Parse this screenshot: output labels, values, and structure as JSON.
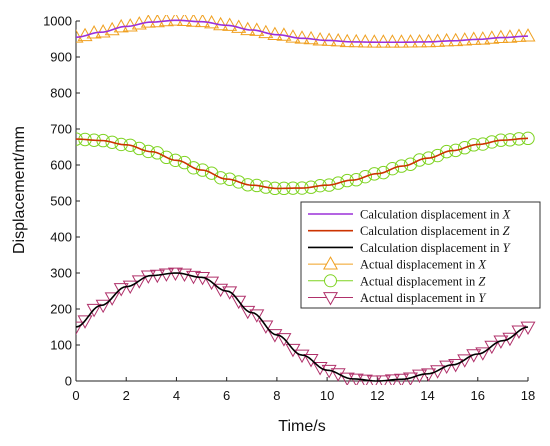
{
  "chart_data": {
    "type": "line",
    "xlabel": "Time/s",
    "ylabel": "Displacement/mm",
    "xlim": [
      0,
      18
    ],
    "ylim": [
      0,
      1000
    ],
    "xticks": [
      0,
      2,
      4,
      6,
      8,
      10,
      12,
      14,
      16,
      18
    ],
    "yticks": [
      0,
      100,
      200,
      300,
      400,
      500,
      600,
      700,
      800,
      900,
      1000
    ],
    "grid": false,
    "legend_position": "right",
    "x": [
      0,
      1,
      2,
      3,
      4,
      5,
      6,
      7,
      8,
      9,
      10,
      11,
      12,
      13,
      14,
      15,
      16,
      17,
      18
    ],
    "series": [
      {
        "name_prefix": "Calculation displacement in ",
        "axis_letter": "X",
        "kind": "line",
        "color": "#9b30d9",
        "values": [
          955,
          969,
          985,
          997,
          1002,
          998,
          988,
          975,
          962,
          952,
          946,
          942,
          941,
          941,
          942,
          945,
          949,
          954,
          958
        ]
      },
      {
        "name_prefix": "Calculation displacement in ",
        "axis_letter": "Z",
        "kind": "line",
        "color": "#cc3300",
        "values": [
          672,
          668,
          656,
          637,
          613,
          586,
          561,
          544,
          535,
          536,
          544,
          558,
          576,
          597,
          619,
          640,
          657,
          669,
          674
        ]
      },
      {
        "name_prefix": "Calculation displacement in ",
        "axis_letter": "Y",
        "kind": "line",
        "color": "#000000",
        "values": [
          150,
          210,
          262,
          293,
          300,
          288,
          250,
          190,
          128,
          72,
          30,
          6,
          0,
          5,
          20,
          45,
          75,
          112,
          150
        ]
      },
      {
        "name_prefix": "Actual displacement in ",
        "axis_letter": "X",
        "kind": "triangle-up",
        "color": "#f0a020",
        "values": [
          955,
          969,
          985,
          997,
          1002,
          998,
          988,
          975,
          962,
          952,
          946,
          942,
          941,
          941,
          942,
          945,
          949,
          954,
          958
        ]
      },
      {
        "name_prefix": "Actual displacement in ",
        "axis_letter": "Z",
        "kind": "circle",
        "color": "#7ed321",
        "values": [
          672,
          668,
          656,
          637,
          613,
          586,
          561,
          544,
          535,
          536,
          544,
          558,
          576,
          597,
          619,
          640,
          657,
          669,
          674
        ]
      },
      {
        "name_prefix": "Actual displacement in ",
        "axis_letter": "Y",
        "kind": "triangle-down",
        "color": "#b0306a",
        "values": [
          150,
          210,
          262,
          293,
          300,
          288,
          250,
          190,
          128,
          72,
          30,
          6,
          0,
          5,
          20,
          45,
          75,
          112,
          150
        ]
      }
    ]
  }
}
